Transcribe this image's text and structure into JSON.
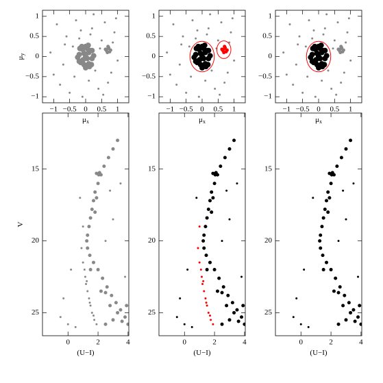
{
  "chart_data": [
    {
      "type": "scatter",
      "xlabel": [
        "μ",
        "x"
      ],
      "ylabel": [
        "μ",
        "y"
      ],
      "xlim": [
        -1.35,
        1.35
      ],
      "ylim": [
        -1.15,
        1.15
      ],
      "xticks": [
        {
          "value": -1,
          "label": "−1"
        },
        {
          "value": -0.5,
          "label": "−0.5"
        },
        0,
        0.5,
        1
      ],
      "yticks": [
        {
          "value": -1,
          "label": "−1"
        },
        {
          "value": -0.5,
          "label": "−0.5"
        },
        0,
        0.5,
        1
      ],
      "series": [
        {
          "color": "#888888",
          "marker_size": 1.5,
          "x": [
            -0.9,
            -0.6,
            -0.3,
            0.2,
            0.5,
            0.9,
            -1.1,
            -0.7,
            0.1,
            0.4,
            0.8,
            -0.5,
            -0.2,
            0.3,
            0.6,
            1.0,
            -0.8,
            -0.1,
            0.45,
            0.95,
            -0.4,
            0.15,
            -1.0,
            0.7,
            -0.35,
            0.55,
            0.25,
            -0.65,
            0.85,
            -0.15
          ],
          "values": [
            0.8,
            0.5,
            0.9,
            0.7,
            0.4,
            0.6,
            0.1,
            -0.2,
            -0.6,
            -0.8,
            -0.4,
            -0.9,
            0.45,
            -0.35,
            0.85,
            -0.1,
            -0.7,
            -1.0,
            0.2,
            0.95,
            0.25,
            0.55,
            -0.45,
            -0.65,
            -0.5,
            -0.95,
            1.05,
            0.3,
            0.35,
            0.65
          ]
        },
        {
          "color": "#888888",
          "marker_size": 4,
          "x": [
            0,
            0.1,
            -0.1,
            0.2,
            -0.2,
            0.05,
            -0.05,
            0.15,
            -0.15,
            0.25,
            -0.25,
            0,
            0.1,
            -0.1,
            0.2,
            -0.2,
            0.05,
            -0.05,
            0.12,
            -0.12,
            0,
            0.18,
            -0.18,
            0.08,
            -0.08
          ],
          "values": [
            0,
            0.1,
            -0.1,
            -0.05,
            0.05,
            0.2,
            -0.2,
            0.15,
            -0.15,
            0.02,
            -0.02,
            0.25,
            -0.18,
            0.18,
            0.15,
            -0.12,
            -0.05,
            0.08,
            -0.25,
            0.25,
            -0.28,
            -0.2,
            0.2,
            0.28,
            -0.08
          ]
        },
        {
          "color": "#888888",
          "marker_size": 2.5,
          "x": [
            0.65,
            0.7,
            0.75,
            0.68,
            0.72,
            0.62,
            0.78,
            0.7
          ],
          "values": [
            0.15,
            0.2,
            0.12,
            0.1,
            0.22,
            0.18,
            0.16,
            0.25
          ]
        }
      ]
    },
    {
      "type": "scatter",
      "xlabel": [
        "μ",
        "x"
      ],
      "xlim": [
        -1.35,
        1.35
      ],
      "ylim": [
        -1.15,
        1.15
      ],
      "xticks": [
        {
          "value": -1,
          "label": "−1"
        },
        {
          "value": -0.5,
          "label": "−0.5"
        },
        0,
        0.5,
        1
      ],
      "yticks": [
        {
          "value": -1,
          "label": "−1"
        },
        {
          "value": -0.5,
          "label": "−0.5"
        },
        0,
        0.5,
        1
      ],
      "series": [
        {
          "color": "#888888",
          "marker_size": 1.5,
          "x": [
            -0.9,
            -0.6,
            -0.3,
            0.2,
            0.5,
            0.9,
            -1.1,
            -0.7,
            0.1,
            0.4,
            0.8,
            -0.5,
            -0.2,
            0.3,
            0.6,
            1.0,
            -0.8,
            -0.1,
            0.45,
            0.95,
            -0.4,
            0.15,
            -1.0,
            0.7,
            -0.35,
            0.55,
            0.25,
            -0.65,
            0.85,
            -0.15
          ],
          "values": [
            0.8,
            0.5,
            0.9,
            0.7,
            0.4,
            0.6,
            0.1,
            -0.2,
            -0.6,
            -0.8,
            -0.4,
            -0.9,
            0.45,
            -0.35,
            0.85,
            -0.1,
            -0.7,
            -1.0,
            0.2,
            0.95,
            0.25,
            0.55,
            -0.45,
            -0.65,
            -0.5,
            -0.95,
            1.05,
            0.3,
            0.35,
            0.65
          ]
        },
        {
          "color": "#000000",
          "marker_size": 4,
          "x": [
            0,
            0.1,
            -0.1,
            0.2,
            -0.2,
            0.05,
            -0.05,
            0.15,
            -0.15,
            0.25,
            -0.25,
            0,
            0.1,
            -0.1,
            0.2,
            -0.2,
            0.05,
            -0.05,
            0.12,
            -0.12,
            0,
            0.18,
            -0.18,
            0.08,
            -0.08
          ],
          "values": [
            0,
            0.1,
            -0.1,
            -0.05,
            0.05,
            0.2,
            -0.2,
            0.15,
            -0.15,
            0.02,
            -0.02,
            0.25,
            -0.18,
            0.18,
            0.15,
            -0.12,
            -0.05,
            0.08,
            -0.25,
            0.25,
            -0.28,
            -0.2,
            0.2,
            0.28,
            -0.08
          ]
        },
        {
          "color": "#ff0000",
          "marker_size": 2.5,
          "x": [
            0.65,
            0.7,
            0.75,
            0.68,
            0.72,
            0.62,
            0.78,
            0.7
          ],
          "values": [
            0.15,
            0.2,
            0.12,
            0.1,
            0.22,
            0.18,
            0.16,
            0.25
          ]
        }
      ],
      "circles": [
        {
          "x": 0,
          "y": 0,
          "r": 0.38,
          "color": "#ff0000"
        },
        {
          "x": 0.68,
          "y": 0.17,
          "r": 0.22,
          "color": "#ff0000"
        }
      ]
    },
    {
      "type": "scatter",
      "xlabel": [
        "μ",
        "x"
      ],
      "xlim": [
        -1.35,
        1.35
      ],
      "ylim": [
        -1.15,
        1.15
      ],
      "xticks": [
        {
          "value": -1,
          "label": "−1"
        },
        {
          "value": -0.5,
          "label": "−0.5"
        },
        0,
        0.5,
        1
      ],
      "yticks": [
        {
          "value": -1,
          "label": "−1"
        },
        {
          "value": -0.5,
          "label": "−0.5"
        },
        0,
        0.5,
        1
      ],
      "series": [
        {
          "color": "#888888",
          "marker_size": 1.5,
          "x": [
            -0.9,
            -0.6,
            -0.3,
            0.2,
            0.5,
            0.9,
            -1.1,
            -0.7,
            0.1,
            0.4,
            0.8,
            -0.5,
            -0.2,
            0.3,
            0.6,
            1.0,
            -0.8,
            -0.1,
            0.45,
            0.95,
            -0.4,
            0.15,
            -1.0,
            0.7,
            -0.35,
            0.55,
            0.25,
            -0.65,
            0.85,
            -0.15
          ],
          "values": [
            0.8,
            0.5,
            0.9,
            0.7,
            0.4,
            0.6,
            0.1,
            -0.2,
            -0.6,
            -0.8,
            -0.4,
            -0.9,
            0.45,
            -0.35,
            0.85,
            -0.1,
            -0.7,
            -1.0,
            0.2,
            0.95,
            0.25,
            0.55,
            -0.45,
            -0.65,
            -0.5,
            -0.95,
            1.05,
            0.3,
            0.35,
            0.65
          ]
        },
        {
          "color": "#000000",
          "marker_size": 4,
          "x": [
            0,
            0.1,
            -0.1,
            0.2,
            -0.2,
            0.05,
            -0.05,
            0.15,
            -0.15,
            0.25,
            -0.25,
            0,
            0.1,
            -0.1,
            0.2,
            -0.2,
            0.05,
            -0.05,
            0.12,
            -0.12,
            0,
            0.18,
            -0.18,
            0.08,
            -0.08
          ],
          "values": [
            0,
            0.1,
            -0.1,
            -0.05,
            0.05,
            0.2,
            -0.2,
            0.15,
            -0.15,
            0.02,
            -0.02,
            0.25,
            -0.18,
            0.18,
            0.15,
            -0.12,
            -0.05,
            0.08,
            -0.25,
            0.25,
            -0.28,
            -0.2,
            0.2,
            0.28,
            -0.08
          ]
        },
        {
          "color": "#888888",
          "marker_size": 2.5,
          "x": [
            0.65,
            0.7,
            0.75,
            0.68,
            0.72,
            0.62,
            0.78,
            0.7
          ],
          "values": [
            0.15,
            0.2,
            0.12,
            0.1,
            0.22,
            0.18,
            0.16,
            0.25
          ]
        }
      ],
      "circles": [
        {
          "x": 0,
          "y": 0,
          "r": 0.38,
          "color": "#ff0000"
        }
      ]
    },
    {
      "type": "scatter",
      "xlabel": [
        "(U−I)"
      ],
      "ylabel": [
        "V"
      ],
      "xlim": [
        -1.7,
        4.05
      ],
      "ylim": [
        26.6,
        11.1
      ],
      "xticks": [
        0,
        2,
        4
      ],
      "yticks": [
        15,
        20,
        25
      ],
      "series": [
        {
          "color": "#888888",
          "marker_size": 2.5,
          "x": [
            3.3,
            3.0,
            2.7,
            2.4,
            2.2,
            2.0,
            1.8,
            1.7,
            1.6,
            1.5,
            1.4,
            1.3,
            1.25,
            1.3,
            1.45,
            1.7,
            2.0,
            2.3,
            2.6,
            2.9,
            3.2,
            3.5,
            3.8,
            4.0,
            3.6,
            3.0,
            4.3,
            1.9,
            2.05,
            2.1,
            1.8,
            1.9,
            2.5,
            3.3,
            2.8,
            2.5,
            1.5,
            2.2,
            4.4,
            3.9
          ],
          "values": [
            13.0,
            13.6,
            14.2,
            14.8,
            15.4,
            16.0,
            16.6,
            17.2,
            17.8,
            18.4,
            19.0,
            19.6,
            20.0,
            20.5,
            21.0,
            21.5,
            22.0,
            22.6,
            23.2,
            23.8,
            24.3,
            24.8,
            25.3,
            25.8,
            25.6,
            25.5,
            25.0,
            15.3,
            15.4,
            15.25,
            18.0,
            17.0,
            23.6,
            25.0,
            24.5,
            25.8,
            22.0,
            23.5,
            26.0,
            24.5
          ]
        },
        {
          "color": "#888888",
          "marker_size": 1.5,
          "x": [
            1.0,
            1.1,
            1.15,
            1.2,
            1.3,
            1.4,
            1.5,
            1.6,
            1.75,
            1.9,
            1.25,
            1.45,
            1.7,
            0.9,
            1.0
          ],
          "values": [
            21.5,
            22.0,
            22.5,
            23.0,
            23.5,
            24.0,
            24.5,
            25.0,
            25.5,
            25.8,
            22.8,
            24.3,
            25.2,
            20.5,
            19.0
          ]
        },
        {
          "color": "#888888",
          "marker_size": 1.5,
          "x": [
            0.2,
            -0.5,
            0.5,
            3.5,
            3.0,
            2.5,
            4.2,
            0.8,
            3.8,
            -0.3,
            2.8,
            0.0
          ],
          "values": [
            22.0,
            25.3,
            26.0,
            16.0,
            18.5,
            20.0,
            21.0,
            17.0,
            22.5,
            24.0,
            16.5,
            25.8
          ]
        }
      ]
    },
    {
      "type": "scatter",
      "xlabel": [
        "(U−I)"
      ],
      "xlim": [
        -1.7,
        4.05
      ],
      "ylim": [
        26.6,
        11.1
      ],
      "xticks": [
        0,
        2,
        4
      ],
      "yticks": [
        15,
        20,
        25
      ],
      "series": [
        {
          "color": "#000000",
          "marker_size": 2.5,
          "x": [
            3.3,
            3.0,
            2.7,
            2.4,
            2.2,
            2.0,
            1.8,
            1.7,
            1.6,
            1.5,
            1.4,
            1.3,
            1.25,
            1.3,
            1.45,
            1.7,
            2.0,
            2.3,
            2.6,
            2.9,
            3.2,
            3.5,
            3.8,
            4.0,
            3.6,
            3.0,
            4.3,
            1.9,
            2.05,
            2.1,
            1.8,
            1.9,
            2.5,
            3.3,
            2.8,
            2.5,
            1.5,
            2.2,
            4.4,
            3.9
          ],
          "values": [
            13.0,
            13.6,
            14.2,
            14.8,
            15.4,
            16.0,
            16.6,
            17.2,
            17.8,
            18.4,
            19.0,
            19.6,
            20.0,
            20.5,
            21.0,
            21.5,
            22.0,
            22.6,
            23.2,
            23.8,
            24.3,
            24.8,
            25.3,
            25.8,
            25.6,
            25.5,
            25.0,
            15.3,
            15.4,
            15.25,
            18.0,
            17.0,
            23.6,
            25.0,
            24.5,
            25.8,
            22.0,
            23.5,
            26.0,
            24.5
          ]
        },
        {
          "color": "#ff0000",
          "marker_size": 1.5,
          "x": [
            1.0,
            1.1,
            1.15,
            1.2,
            1.3,
            1.4,
            1.5,
            1.6,
            1.75,
            1.9,
            1.25,
            1.45,
            1.7,
            0.9,
            1.0
          ],
          "values": [
            21.5,
            22.0,
            22.5,
            23.0,
            23.5,
            24.0,
            24.5,
            25.0,
            25.5,
            25.8,
            22.8,
            24.3,
            25.2,
            20.5,
            19.0
          ]
        },
        {
          "color": "#000000",
          "marker_size": 1.5,
          "x": [
            0.2,
            -0.5,
            0.5,
            3.5,
            3.0,
            2.5,
            4.2,
            0.8,
            3.8,
            -0.3,
            2.8,
            0.0
          ],
          "values": [
            22.0,
            25.3,
            26.0,
            16.0,
            18.5,
            20.0,
            21.0,
            17.0,
            22.5,
            24.0,
            16.5,
            25.8
          ]
        }
      ]
    },
    {
      "type": "scatter",
      "xlabel": [
        "(U−I)"
      ],
      "xlim": [
        -1.7,
        4.05
      ],
      "ylim": [
        26.6,
        11.1
      ],
      "xticks": [
        0,
        2,
        4
      ],
      "yticks": [
        15,
        20,
        25
      ],
      "series": [
        {
          "color": "#000000",
          "marker_size": 2.5,
          "x": [
            3.3,
            3.0,
            2.7,
            2.4,
            2.2,
            2.0,
            1.8,
            1.7,
            1.6,
            1.5,
            1.4,
            1.3,
            1.25,
            1.3,
            1.45,
            1.7,
            2.0,
            2.3,
            2.6,
            2.9,
            3.2,
            3.5,
            3.8,
            4.0,
            3.6,
            3.0,
            4.3,
            1.9,
            2.05,
            2.1,
            1.8,
            1.9,
            2.5,
            3.3,
            2.8,
            2.5,
            1.5,
            2.2,
            4.4,
            3.9
          ],
          "values": [
            13.0,
            13.6,
            14.2,
            14.8,
            15.4,
            16.0,
            16.6,
            17.2,
            17.8,
            18.4,
            19.0,
            19.6,
            20.0,
            20.5,
            21.0,
            21.5,
            22.0,
            22.6,
            23.2,
            23.8,
            24.3,
            24.8,
            25.3,
            25.8,
            25.6,
            25.5,
            25.0,
            15.3,
            15.4,
            15.25,
            18.0,
            17.0,
            23.6,
            25.0,
            24.5,
            25.8,
            22.0,
            23.5,
            26.0,
            24.5
          ]
        },
        {
          "color": "#000000",
          "marker_size": 1.5,
          "x": [
            0.2,
            -0.5,
            0.5,
            3.5,
            3.0,
            2.5,
            4.2,
            0.8,
            3.8,
            -0.3,
            2.8,
            0.0
          ],
          "values": [
            22.0,
            25.3,
            26.0,
            16.0,
            18.5,
            20.0,
            21.0,
            17.0,
            22.5,
            24.0,
            16.5,
            25.8
          ]
        }
      ]
    }
  ]
}
